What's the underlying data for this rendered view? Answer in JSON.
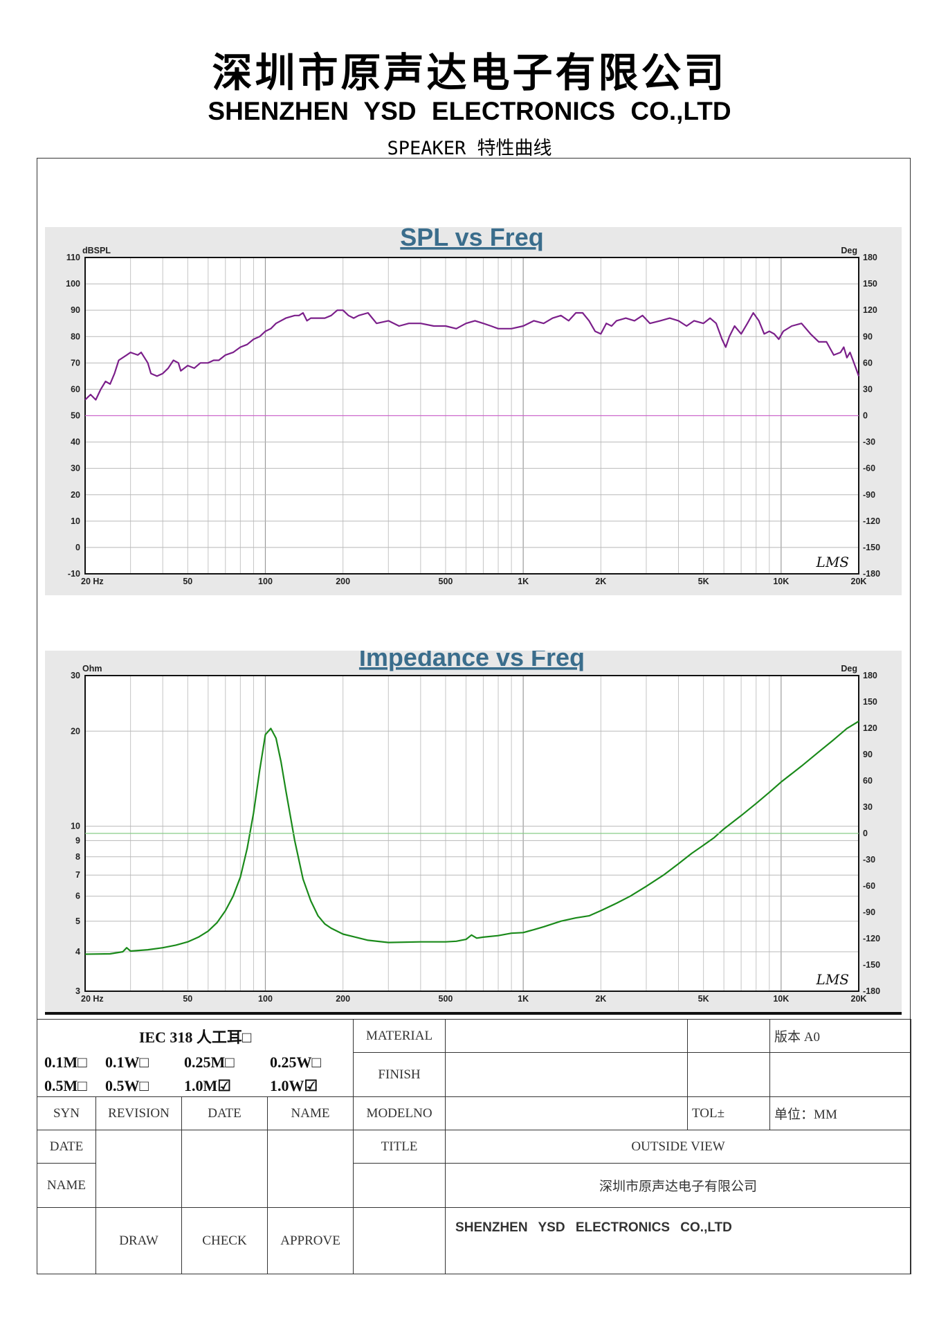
{
  "header": {
    "company_cn": "深圳市原声达电子有限公司",
    "company_en": "SHENZHEN    YSD    ELECTRONICS CO.,LTD",
    "subtitle": "SPEAKER 特性曲线"
  },
  "chart_data": [
    {
      "type": "line",
      "title": "SPL vs Freq",
      "x_scale": "log",
      "xlim": [
        20,
        20000
      ],
      "x_ticks": [
        20,
        50,
        100,
        200,
        500,
        1000,
        2000,
        5000,
        10000,
        20000
      ],
      "x_tick_labels": [
        "20 Hz",
        "50",
        "100",
        "200",
        "500",
        "1K",
        "2K",
        "5K",
        "10K",
        "20K"
      ],
      "ylabel": "dBSPL",
      "ylim": [
        -10,
        110
      ],
      "y_ticks": [
        -10,
        0,
        10,
        20,
        30,
        40,
        50,
        60,
        70,
        80,
        90,
        100,
        110
      ],
      "y2label": "Deg",
      "y2lim": [
        -180,
        180
      ],
      "y2_ticks": [
        -180,
        -150,
        -120,
        -90,
        -60,
        -30,
        0,
        30,
        60,
        90,
        120,
        150,
        180
      ],
      "grid": true,
      "watermark": "LMS",
      "series": [
        {
          "axis": "left",
          "color": "#7b1f8a",
          "points": [
            [
              20,
              56
            ],
            [
              21,
              58
            ],
            [
              22,
              56
            ],
            [
              23,
              60
            ],
            [
              24,
              63
            ],
            [
              25,
              62
            ],
            [
              26,
              66
            ],
            [
              27,
              71
            ],
            [
              29,
              73
            ],
            [
              30,
              74
            ],
            [
              32,
              73
            ],
            [
              33,
              74
            ],
            [
              35,
              70
            ],
            [
              36,
              66
            ],
            [
              38,
              65
            ],
            [
              40,
              66
            ],
            [
              42,
              68
            ],
            [
              44,
              71
            ],
            [
              46,
              70
            ],
            [
              47,
              67
            ],
            [
              50,
              69
            ],
            [
              53,
              68
            ],
            [
              56,
              70
            ],
            [
              60,
              70
            ],
            [
              63,
              71
            ],
            [
              66,
              71
            ],
            [
              70,
              73
            ],
            [
              75,
              74
            ],
            [
              80,
              76
            ],
            [
              85,
              77
            ],
            [
              90,
              79
            ],
            [
              95,
              80
            ],
            [
              100,
              82
            ],
            [
              105,
              83
            ],
            [
              110,
              85
            ],
            [
              120,
              87
            ],
            [
              130,
              88
            ],
            [
              135,
              88
            ],
            [
              140,
              89
            ],
            [
              145,
              86
            ],
            [
              150,
              87
            ],
            [
              160,
              87
            ],
            [
              170,
              87
            ],
            [
              180,
              88
            ],
            [
              190,
              90
            ],
            [
              200,
              90
            ],
            [
              210,
              88
            ],
            [
              220,
              87
            ],
            [
              230,
              88
            ],
            [
              250,
              89
            ],
            [
              270,
              85
            ],
            [
              300,
              86
            ],
            [
              330,
              84
            ],
            [
              360,
              85
            ],
            [
              400,
              85
            ],
            [
              450,
              84
            ],
            [
              500,
              84
            ],
            [
              550,
              83
            ],
            [
              600,
              85
            ],
            [
              650,
              86
            ],
            [
              700,
              85
            ],
            [
              750,
              84
            ],
            [
              800,
              83
            ],
            [
              900,
              83
            ],
            [
              1000,
              84
            ],
            [
              1100,
              86
            ],
            [
              1200,
              85
            ],
            [
              1300,
              87
            ],
            [
              1400,
              88
            ],
            [
              1500,
              86
            ],
            [
              1600,
              89
            ],
            [
              1700,
              89
            ],
            [
              1800,
              86
            ],
            [
              1900,
              82
            ],
            [
              2000,
              81
            ],
            [
              2100,
              85
            ],
            [
              2200,
              84
            ],
            [
              2300,
              86
            ],
            [
              2500,
              87
            ],
            [
              2700,
              86
            ],
            [
              2900,
              88
            ],
            [
              3100,
              85
            ],
            [
              3400,
              86
            ],
            [
              3700,
              87
            ],
            [
              4000,
              86
            ],
            [
              4300,
              84
            ],
            [
              4600,
              86
            ],
            [
              5000,
              85
            ],
            [
              5300,
              87
            ],
            [
              5600,
              85
            ],
            [
              5900,
              79
            ],
            [
              6100,
              76
            ],
            [
              6300,
              80
            ],
            [
              6600,
              84
            ],
            [
              7000,
              81
            ],
            [
              7400,
              85
            ],
            [
              7800,
              89
            ],
            [
              8200,
              86
            ],
            [
              8600,
              81
            ],
            [
              9000,
              82
            ],
            [
              9400,
              81
            ],
            [
              9800,
              79
            ],
            [
              10200,
              82
            ],
            [
              11000,
              84
            ],
            [
              12000,
              85
            ],
            [
              13000,
              81
            ],
            [
              14000,
              78
            ],
            [
              15000,
              78
            ],
            [
              16000,
              73
            ],
            [
              17000,
              74
            ],
            [
              17500,
              76
            ],
            [
              18000,
              72
            ],
            [
              18500,
              74
            ],
            [
              19000,
              71
            ],
            [
              19500,
              68
            ],
            [
              20000,
              65
            ]
          ]
        },
        {
          "axis": "right",
          "color": "#cc66cc",
          "points": [
            [
              20,
              0
            ],
            [
              20000,
              0
            ]
          ]
        }
      ]
    },
    {
      "type": "line",
      "title": "Impedance vs Freq",
      "x_scale": "log",
      "xlim": [
        20,
        20000
      ],
      "x_ticks": [
        20,
        50,
        100,
        200,
        500,
        1000,
        2000,
        5000,
        10000,
        20000
      ],
      "x_tick_labels": [
        "20 Hz",
        "50",
        "100",
        "200",
        "500",
        "1K",
        "2K",
        "5K",
        "10K",
        "20K"
      ],
      "ylabel": "Ohm",
      "y_scale": "log",
      "ylim": [
        3,
        30
      ],
      "y_ticks": [
        3,
        4,
        5,
        6,
        7,
        8,
        9,
        10,
        20,
        30
      ],
      "y2label": "Deg",
      "y2lim": [
        -180,
        180
      ],
      "y2_ticks": [
        -180,
        -150,
        -120,
        -90,
        -60,
        -30,
        0,
        30,
        60,
        90,
        120,
        150,
        180
      ],
      "grid": true,
      "watermark": "LMS",
      "series": [
        {
          "axis": "left",
          "color": "#1a8a1a",
          "points": [
            [
              20,
              3.93
            ],
            [
              25,
              3.94
            ],
            [
              28,
              4.0
            ],
            [
              29,
              4.12
            ],
            [
              30,
              4.02
            ],
            [
              35,
              4.06
            ],
            [
              40,
              4.12
            ],
            [
              45,
              4.2
            ],
            [
              50,
              4.3
            ],
            [
              55,
              4.45
            ],
            [
              60,
              4.65
            ],
            [
              65,
              4.95
            ],
            [
              70,
              5.4
            ],
            [
              75,
              6.0
            ],
            [
              80,
              6.9
            ],
            [
              85,
              8.5
            ],
            [
              90,
              11.0
            ],
            [
              95,
              15.0
            ],
            [
              100,
              19.5
            ],
            [
              105,
              20.4
            ],
            [
              110,
              19.0
            ],
            [
              115,
              16.0
            ],
            [
              120,
              13.0
            ],
            [
              130,
              9.0
            ],
            [
              140,
              6.8
            ],
            [
              150,
              5.8
            ],
            [
              160,
              5.2
            ],
            [
              170,
              4.9
            ],
            [
              180,
              4.75
            ],
            [
              200,
              4.55
            ],
            [
              250,
              4.35
            ],
            [
              300,
              4.28
            ],
            [
              400,
              4.3
            ],
            [
              500,
              4.3
            ],
            [
              550,
              4.32
            ],
            [
              600,
              4.38
            ],
            [
              630,
              4.52
            ],
            [
              660,
              4.42
            ],
            [
              700,
              4.45
            ],
            [
              800,
              4.5
            ],
            [
              900,
              4.58
            ],
            [
              1000,
              4.6
            ],
            [
              1100,
              4.7
            ],
            [
              1200,
              4.8
            ],
            [
              1400,
              5.0
            ],
            [
              1600,
              5.12
            ],
            [
              1800,
              5.2
            ],
            [
              2000,
              5.4
            ],
            [
              2300,
              5.7
            ],
            [
              2600,
              6.0
            ],
            [
              3000,
              6.45
            ],
            [
              3500,
              7.0
            ],
            [
              4000,
              7.6
            ],
            [
              4500,
              8.2
            ],
            [
              5000,
              8.7
            ],
            [
              5500,
              9.2
            ],
            [
              6000,
              9.8
            ],
            [
              7000,
              10.8
            ],
            [
              8000,
              11.8
            ],
            [
              9000,
              12.8
            ],
            [
              10000,
              13.8
            ],
            [
              12000,
              15.5
            ],
            [
              14000,
              17.2
            ],
            [
              16000,
              18.8
            ],
            [
              18000,
              20.4
            ],
            [
              20000,
              21.5
            ]
          ]
        },
        {
          "axis": "right",
          "color": "#88cc88",
          "points": [
            [
              20,
              0
            ],
            [
              20000,
              0
            ]
          ]
        }
      ]
    }
  ],
  "title_block": {
    "iec": "IEC 318  人工耳□",
    "options": {
      "a1": "0.1M□",
      "a2": "0.1W□",
      "a3": "0.25M□",
      "a4": "0.25W□",
      "b1": "0.5M□",
      "b2": "0.5W□",
      "b3": "1.0M☑",
      "b4": "1.0W☑"
    },
    "material": "MATERIAL",
    "finish": "FINISH",
    "version": "版本 A0",
    "syn": "SYN",
    "revision": "REVISION",
    "date": "DATE",
    "name": "NAME",
    "modelno": "MODELNO",
    "tol": "TOL±",
    "unit": "单位：MM",
    "date_row": "DATE",
    "title_label": "TITLE",
    "title_value": "OUTSIDE VIEW",
    "name_row": "NAME",
    "company_cn": "深圳市原声达电子有限公司",
    "company_en": "SHENZHEN    YSD    ELECTRONICS       CO.,LTD",
    "draw": "DRAW",
    "check": "CHECK",
    "approve": "APPROVE"
  }
}
